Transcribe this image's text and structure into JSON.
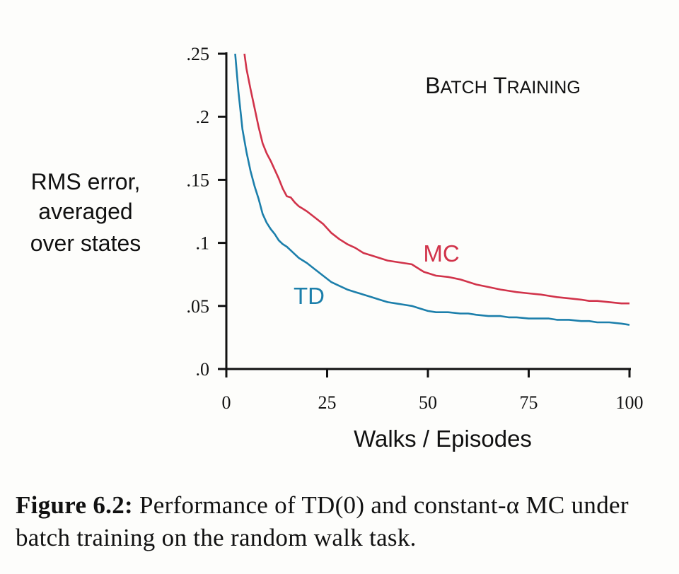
{
  "chart_data": {
    "type": "line",
    "title": "BATCH TRAINING",
    "xlabel": "Walks / Episodes",
    "ylabel": [
      "RMS error,",
      "averaged",
      "over states"
    ],
    "xlim": [
      0,
      100
    ],
    "ylim": [
      0,
      0.25
    ],
    "xticks": [
      0,
      25,
      50,
      75,
      100
    ],
    "xtick_labels": [
      "0",
      "25",
      "50",
      "75",
      "100"
    ],
    "yticks": [
      0,
      0.05,
      0.1,
      0.15,
      0.2,
      0.25
    ],
    "ytick_labels": [
      ".0",
      ".05",
      ".1",
      ".15",
      ".2",
      ".25"
    ],
    "grid": false,
    "series": [
      {
        "name": "MC",
        "color": "#d1334a",
        "x": [
          4.5,
          5,
          6,
          7,
          8,
          9,
          10,
          11,
          12,
          13,
          14,
          15,
          16,
          17,
          18,
          19,
          20,
          22,
          24,
          26,
          28,
          30,
          32,
          34,
          36,
          38,
          40,
          42,
          44,
          46,
          47,
          48,
          49,
          50,
          52,
          55,
          58,
          60,
          62,
          65,
          68,
          70,
          72,
          75,
          78,
          80,
          82,
          85,
          88,
          90,
          92,
          95,
          98,
          100
        ],
        "y": [
          0.25,
          0.238,
          0.222,
          0.207,
          0.192,
          0.179,
          0.171,
          0.165,
          0.158,
          0.151,
          0.143,
          0.137,
          0.136,
          0.132,
          0.129,
          0.127,
          0.125,
          0.12,
          0.115,
          0.108,
          0.103,
          0.099,
          0.096,
          0.092,
          0.09,
          0.088,
          0.086,
          0.085,
          0.084,
          0.083,
          0.081,
          0.079,
          0.077,
          0.076,
          0.074,
          0.073,
          0.071,
          0.069,
          0.067,
          0.065,
          0.063,
          0.062,
          0.061,
          0.06,
          0.059,
          0.058,
          0.057,
          0.056,
          0.055,
          0.054,
          0.054,
          0.053,
          0.052,
          0.052
        ]
      },
      {
        "name": "TD",
        "color": "#1c7fab",
        "x": [
          2.2,
          3,
          4,
          5,
          6,
          7,
          8,
          9,
          10,
          11,
          12,
          13,
          14,
          15,
          16,
          17,
          18,
          20,
          22,
          24,
          26,
          28,
          30,
          32,
          34,
          36,
          38,
          40,
          42,
          44,
          46,
          48,
          50,
          52,
          55,
          58,
          60,
          62,
          65,
          68,
          70,
          72,
          75,
          78,
          80,
          82,
          85,
          88,
          90,
          92,
          95,
          98,
          100
        ],
        "y": [
          0.25,
          0.22,
          0.19,
          0.172,
          0.157,
          0.145,
          0.135,
          0.123,
          0.116,
          0.111,
          0.107,
          0.102,
          0.099,
          0.097,
          0.094,
          0.091,
          0.088,
          0.084,
          0.079,
          0.074,
          0.069,
          0.066,
          0.063,
          0.061,
          0.059,
          0.057,
          0.055,
          0.053,
          0.052,
          0.051,
          0.05,
          0.048,
          0.046,
          0.045,
          0.045,
          0.044,
          0.044,
          0.043,
          0.042,
          0.042,
          0.041,
          0.041,
          0.04,
          0.04,
          0.04,
          0.039,
          0.039,
          0.038,
          0.038,
          0.037,
          0.037,
          0.036,
          0.035
        ]
      }
    ]
  },
  "caption": {
    "label": "Figure 6.2:",
    "text": " Performance of TD(0) and constant-α MC under batch training on the random walk task."
  }
}
